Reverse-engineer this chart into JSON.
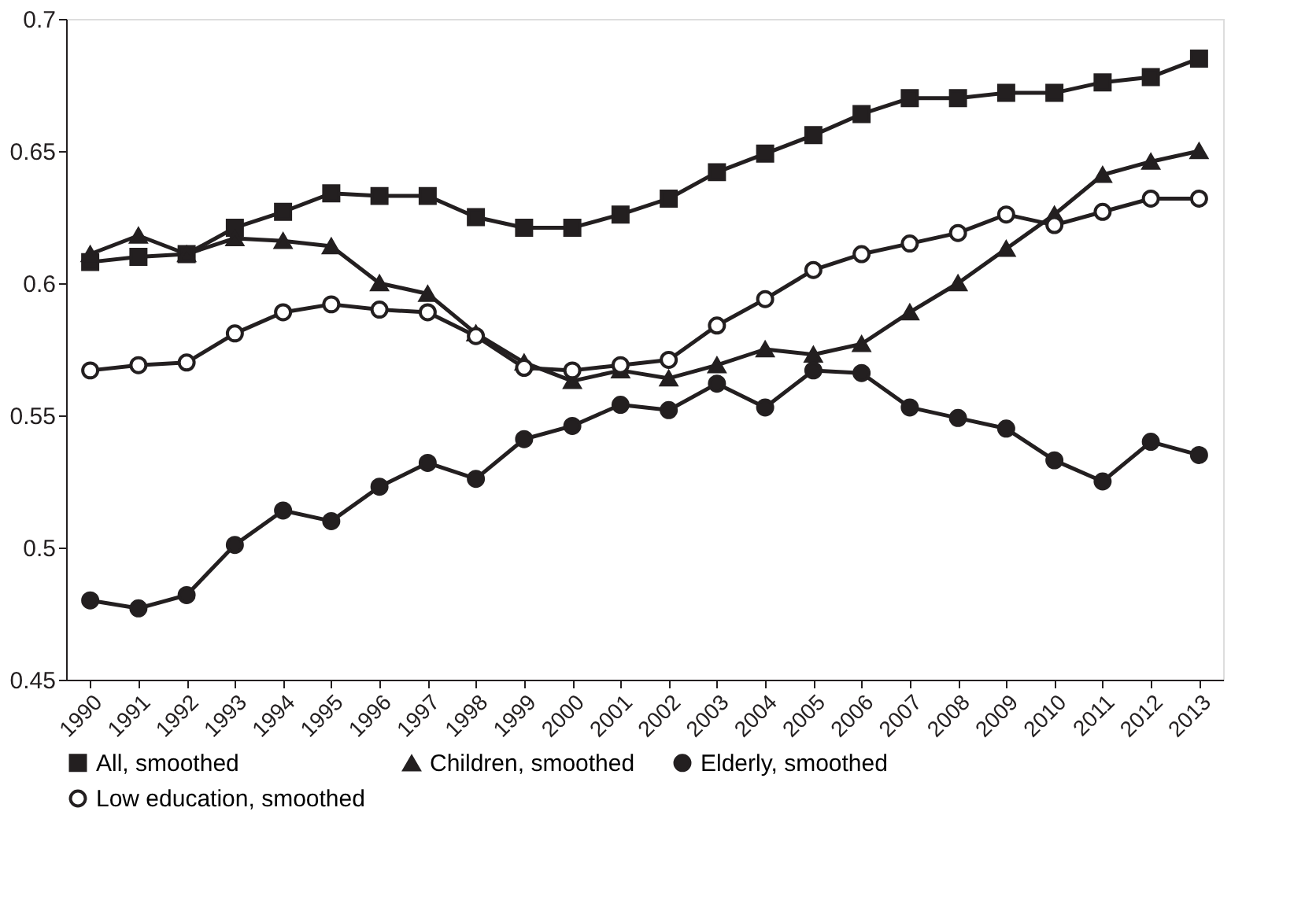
{
  "chart_data": {
    "type": "line",
    "categories": [
      "1990",
      "1991",
      "1992",
      "1993",
      "1994",
      "1995",
      "1996",
      "1997",
      "1998",
      "1999",
      "2000",
      "2001",
      "2002",
      "2003",
      "2004",
      "2005",
      "2006",
      "2007",
      "2008",
      "2009",
      "2010",
      "2011",
      "2012",
      "2013"
    ],
    "series": [
      {
        "name": "All, smoothed",
        "color": "#231f20",
        "marker": "square",
        "values": [
          0.608,
          0.61,
          0.611,
          0.621,
          0.627,
          0.634,
          0.633,
          0.633,
          0.625,
          0.621,
          0.621,
          0.626,
          0.632,
          0.642,
          0.649,
          0.656,
          0.664,
          0.67,
          0.67,
          0.672,
          0.672,
          0.676,
          0.678,
          0.685
        ]
      },
      {
        "name": "Children, smoothed",
        "color": "#231f20",
        "marker": "triangle",
        "values": [
          0.611,
          0.618,
          0.611,
          0.617,
          0.616,
          0.614,
          0.6,
          0.596,
          0.581,
          0.57,
          0.563,
          0.567,
          0.564,
          0.569,
          0.575,
          0.573,
          0.577,
          0.589,
          0.6,
          0.613,
          0.626,
          0.641,
          0.646,
          0.65
        ]
      },
      {
        "name": "Elderly, smoothed",
        "color": "#231f20",
        "marker": "circle",
        "values": [
          0.48,
          0.477,
          0.482,
          0.501,
          0.514,
          0.51,
          0.523,
          0.532,
          0.526,
          0.541,
          0.546,
          0.554,
          0.552,
          0.562,
          0.553,
          0.567,
          0.566,
          0.553,
          0.549,
          0.545,
          0.533,
          0.525,
          0.54,
          0.535
        ]
      },
      {
        "name": "Low education, smoothed",
        "color": "#231f20",
        "marker": "circle-open",
        "values": [
          0.567,
          0.569,
          0.57,
          0.581,
          0.589,
          0.592,
          0.59,
          0.589,
          0.58,
          0.568,
          0.567,
          0.569,
          0.571,
          0.584,
          0.594,
          0.605,
          0.611,
          0.615,
          0.619,
          0.626,
          0.622,
          0.627,
          0.632,
          0.632
        ]
      }
    ],
    "ylim": [
      0.45,
      0.7
    ],
    "yticks": [
      0.45,
      0.5,
      0.55,
      0.6,
      0.65,
      0.7
    ],
    "grid": false,
    "legend": "bottom",
    "line_style": "solid"
  }
}
